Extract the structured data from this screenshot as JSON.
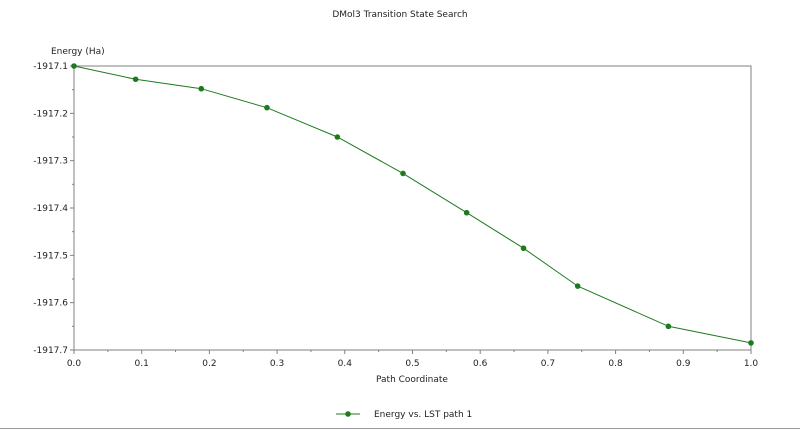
{
  "chart_data": {
    "type": "line",
    "title": "DMol3 Transition State Search",
    "xlabel": "Path Coordinate",
    "ylabel": "Energy (Ha)",
    "xlim": [
      0.0,
      1.0
    ],
    "ylim": [
      -1917.7,
      -1917.1
    ],
    "x_ticks": [
      0.0,
      0.1,
      0.2,
      0.3,
      0.4,
      0.5,
      0.6,
      0.7,
      0.8,
      0.9,
      1.0
    ],
    "x_tick_labels": [
      "0.0",
      "0.1",
      "0.2",
      "0.3",
      "0.4",
      "0.5",
      "0.6",
      "0.7",
      "0.8",
      "0.9",
      "1.0"
    ],
    "y_ticks": [
      -1917.1,
      -1917.2,
      -1917.3,
      -1917.4,
      -1917.5,
      -1917.6,
      -1917.7
    ],
    "y_tick_labels": [
      "-1917.1",
      "-1917.2",
      "-1917.3",
      "-1917.4",
      "-1917.5",
      "-1917.6",
      "-1917.7"
    ],
    "grid": false,
    "legend_position": "bottom-center",
    "series": [
      {
        "name": "Energy vs. LST path 1",
        "color": "#1e7a1e",
        "marker": "circle",
        "x": [
          0.0,
          0.091,
          0.188,
          0.285,
          0.389,
          0.486,
          0.58,
          0.664,
          0.744,
          0.878,
          1.0
        ],
        "y": [
          -1917.1,
          -1917.128,
          -1917.148,
          -1917.188,
          -1917.25,
          -1917.327,
          -1917.41,
          -1917.485,
          -1917.565,
          -1917.65,
          -1917.685
        ]
      }
    ]
  }
}
